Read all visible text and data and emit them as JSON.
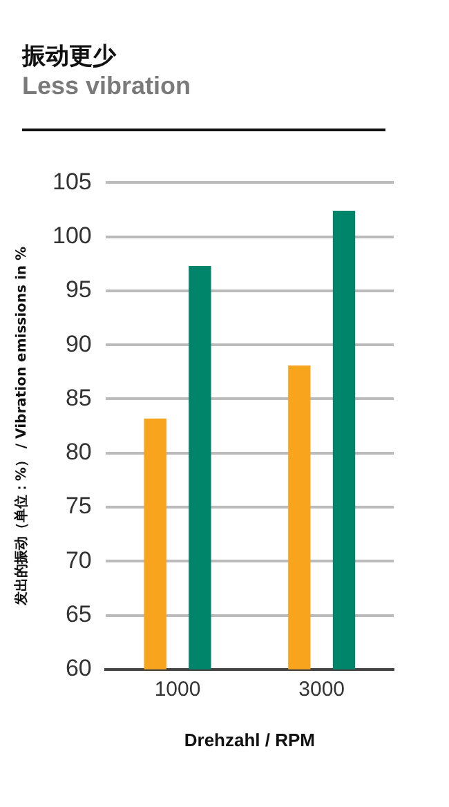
{
  "chart_data": {
    "type": "bar",
    "title": "振动更少",
    "subtitle": "Less vibration",
    "xlabel": "Drehzahl / RPM",
    "ylabel": "发出的振动（单位：%） / Vibration emissions in %",
    "categories": [
      "1000",
      "3000"
    ],
    "series": [
      {
        "color": "#f8a51d",
        "values": [
          83.2,
          88.1
        ]
      },
      {
        "color": "#00856a",
        "values": [
          97.3,
          102.4
        ]
      }
    ],
    "ylim": [
      60,
      105
    ],
    "yticks": [
      60,
      65,
      70,
      75,
      80,
      85,
      90,
      95,
      100,
      105
    ],
    "grid": "y"
  }
}
